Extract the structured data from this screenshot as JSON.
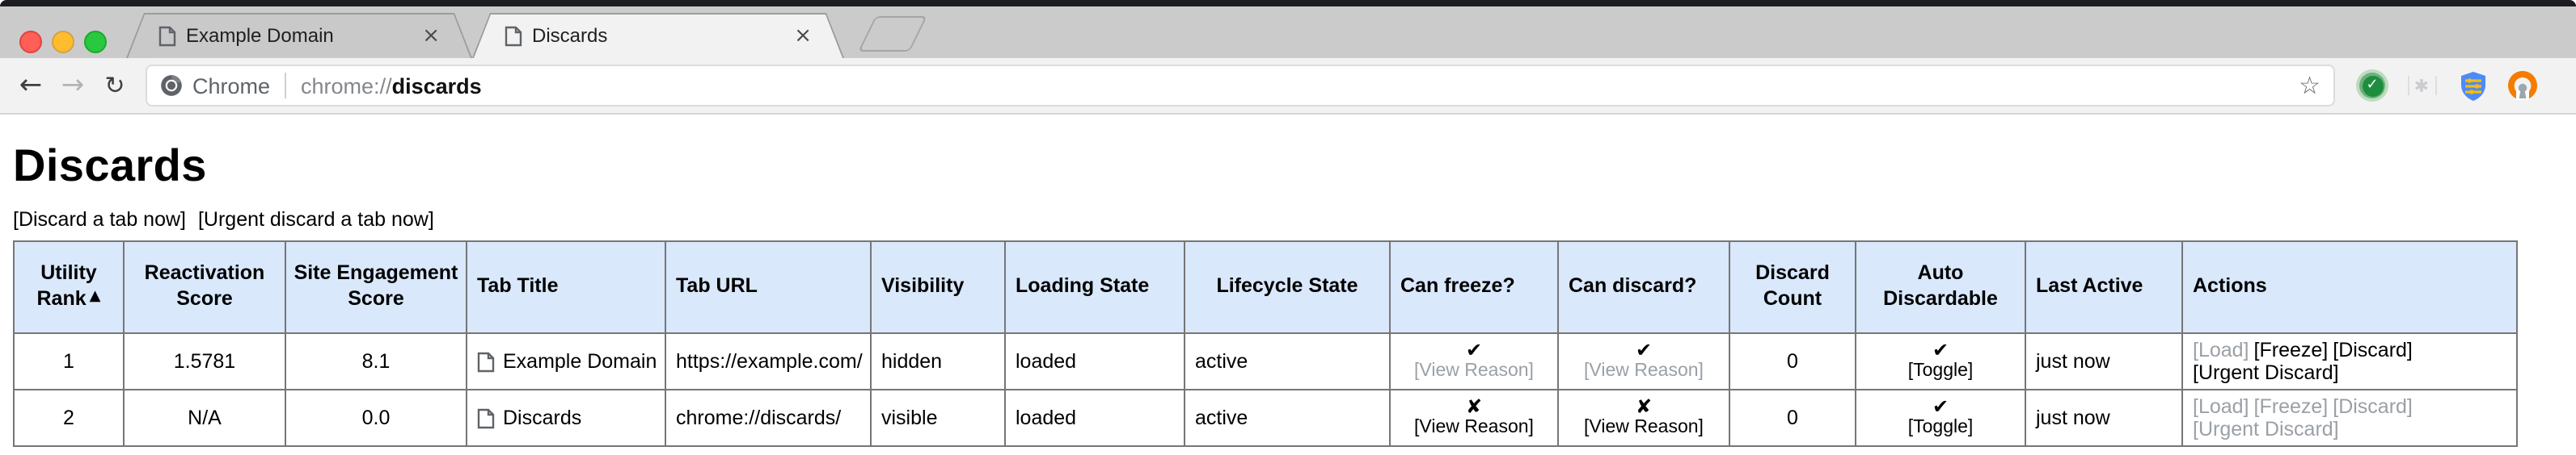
{
  "colors": {
    "header_bg": "#d9e8fb",
    "muted": "#9aa0a6"
  },
  "icons": {
    "check": "✔",
    "cross": "✘",
    "sort_arrow": "▲",
    "star": "☆",
    "back": "←",
    "forward": "→",
    "reload": "↻",
    "close": "×",
    "ext_check": "✓",
    "ext_faded": "✱"
  },
  "browser": {
    "tabs": [
      {
        "title": "Example Domain",
        "active": false
      },
      {
        "title": "Discards",
        "active": true
      }
    ],
    "omnibox": {
      "site_label": "Chrome",
      "url_scheme": "chrome://",
      "url_emphasis": "discards"
    }
  },
  "page": {
    "title": "Discards",
    "action_links": [
      "[Discard a tab now]",
      "[Urgent discard a tab now]"
    ],
    "table": {
      "headers": [
        "Utility Rank",
        "Reactivation Score",
        "Site Engagement Score",
        "Tab Title",
        "Tab URL",
        "Visibility",
        "Loading State",
        "Lifecycle State",
        "Can freeze?",
        "Can discard?",
        "Discard Count",
        "Auto Discardable",
        "Last Active",
        "Actions"
      ],
      "rows": [
        {
          "utility_rank": "1",
          "reactivation_score": "1.5781",
          "site_engagement_score": "8.1",
          "tab_title": "Example Domain",
          "tab_url": "https://example.com/",
          "visibility": "hidden",
          "loading_state": "loaded",
          "lifecycle_state": "active",
          "can_freeze": {
            "mark": "check",
            "reason_link": "[View Reason]",
            "reason_muted": true
          },
          "can_discard": {
            "mark": "check",
            "reason_link": "[View Reason]",
            "reason_muted": true
          },
          "discard_count": "0",
          "auto_discardable": {
            "mark": "check",
            "toggle_link": "[Toggle]"
          },
          "last_active": "just now",
          "actions": [
            {
              "label": "[Load]",
              "muted": true
            },
            {
              "label": "[Freeze]",
              "muted": false
            },
            {
              "label": "[Discard]",
              "muted": false
            },
            {
              "label": "[Urgent Discard]",
              "muted": false
            }
          ]
        },
        {
          "utility_rank": "2",
          "reactivation_score": "N/A",
          "site_engagement_score": "0.0",
          "tab_title": "Discards",
          "tab_url": "chrome://discards/",
          "visibility": "visible",
          "loading_state": "loaded",
          "lifecycle_state": "active",
          "can_freeze": {
            "mark": "cross",
            "reason_link": "[View Reason]",
            "reason_muted": false
          },
          "can_discard": {
            "mark": "cross",
            "reason_link": "[View Reason]",
            "reason_muted": false
          },
          "discard_count": "0",
          "auto_discardable": {
            "mark": "check",
            "toggle_link": "[Toggle]"
          },
          "last_active": "just now",
          "actions": [
            {
              "label": "[Load]",
              "muted": true
            },
            {
              "label": "[Freeze]",
              "muted": true
            },
            {
              "label": "[Discard]",
              "muted": true
            },
            {
              "label": "[Urgent Discard]",
              "muted": true
            }
          ]
        }
      ]
    }
  }
}
